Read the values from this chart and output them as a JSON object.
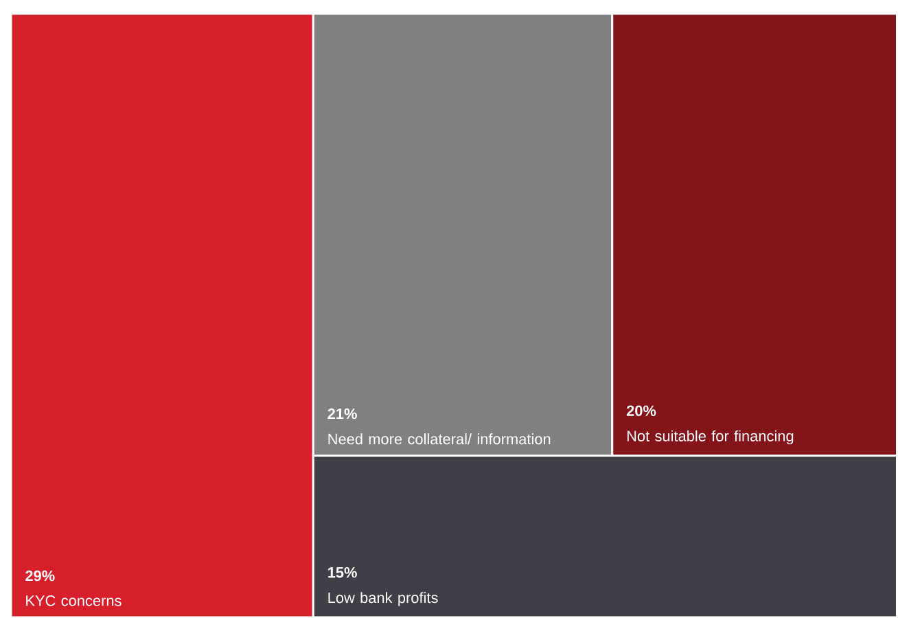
{
  "chart_data": {
    "type": "other",
    "categories": [
      "KYC concerns",
      "Need more collateral/ information",
      "Not suitable for financing",
      "Low bank profits"
    ],
    "values": [
      29,
      21,
      20,
      15
    ],
    "value_labels": [
      "29%",
      "21%",
      "20%",
      "15%"
    ],
    "colors": [
      "#d71f2b",
      "#808080",
      "#82141a",
      "#3f4047"
    ]
  }
}
